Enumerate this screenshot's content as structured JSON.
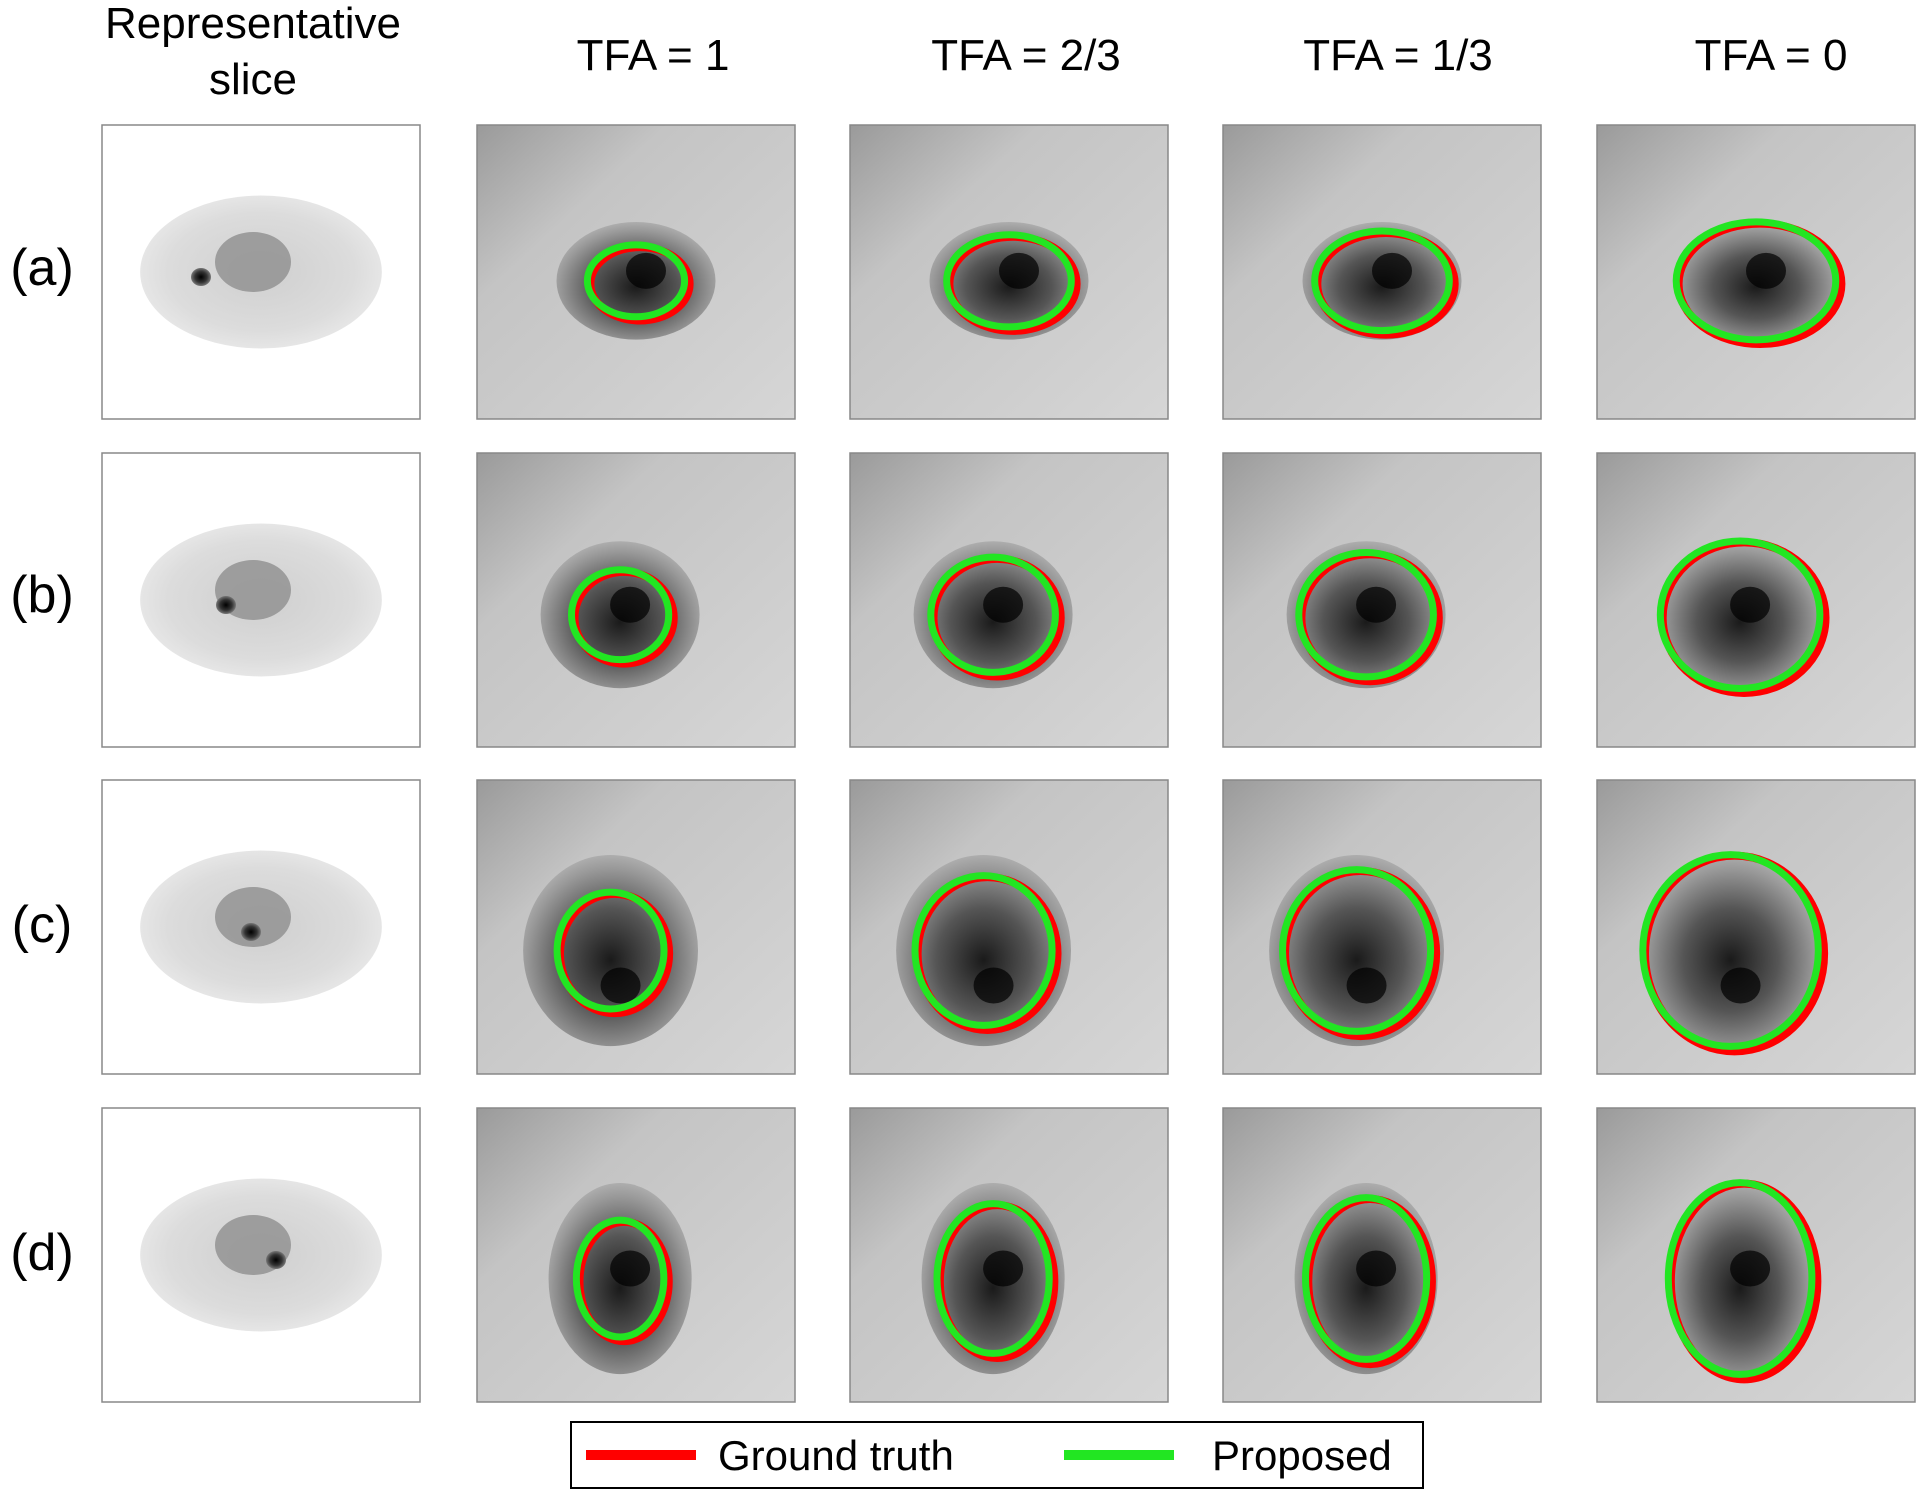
{
  "header": {
    "rep_line1": "Representative",
    "rep_line2": "slice",
    "tfa_labels": [
      "TFA = 1",
      "TFA = 2/3",
      "TFA = 1/3",
      "TFA = 0"
    ]
  },
  "rows": [
    {
      "label": "(a)"
    },
    {
      "label": "(b)"
    },
    {
      "label": "(c)"
    },
    {
      "label": "(d)"
    }
  ],
  "legend": {
    "items": [
      {
        "label": "Ground truth",
        "color": "#ff0000"
      },
      {
        "label": "Proposed",
        "color": "#22e622"
      }
    ]
  },
  "colors": {
    "ground_truth": "#ff0000",
    "proposed": "#22e622",
    "panel_frame": "#888888"
  }
}
